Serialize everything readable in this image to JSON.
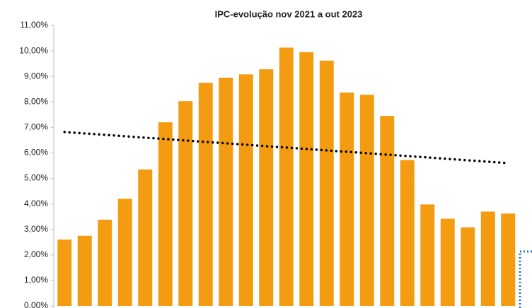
{
  "chart_data": {
    "type": "bar",
    "title": "IPC-evolução nov 2021 a out 2023",
    "categories": [
      null,
      null,
      null,
      null,
      null,
      null,
      null,
      null,
      null,
      null,
      null,
      null,
      null,
      null,
      null,
      null,
      null,
      null,
      null,
      null,
      null,
      null,
      null
    ],
    "values": [
      2.6,
      2.75,
      3.38,
      4.2,
      5.35,
      7.2,
      8.03,
      8.75,
      8.95,
      9.08,
      9.28,
      10.13,
      9.95,
      9.62,
      8.37,
      8.28,
      7.45,
      5.72,
      3.98,
      3.42,
      3.08,
      3.7,
      3.62
    ],
    "color": "#f39c12",
    "ylim": [
      0,
      11
    ],
    "yticks": [
      {
        "value": 0,
        "label": "0,00%"
      },
      {
        "value": 1,
        "label": "1,00%"
      },
      {
        "value": 2,
        "label": "2,00%"
      },
      {
        "value": 3,
        "label": "3,00%"
      },
      {
        "value": 4,
        "label": "4,00%"
      },
      {
        "value": 5,
        "label": "5,00%"
      },
      {
        "value": 6,
        "label": "6,00%"
      },
      {
        "value": 7,
        "label": "7,00%"
      },
      {
        "value": 8,
        "label": "8,00%"
      },
      {
        "value": 9,
        "label": "9,00%"
      },
      {
        "value": 10,
        "label": "10,00%"
      },
      {
        "value": 11,
        "label": "11,00%"
      }
    ],
    "trend_line": {
      "start": 6.82,
      "end": 5.6,
      "color": "#000000"
    }
  }
}
